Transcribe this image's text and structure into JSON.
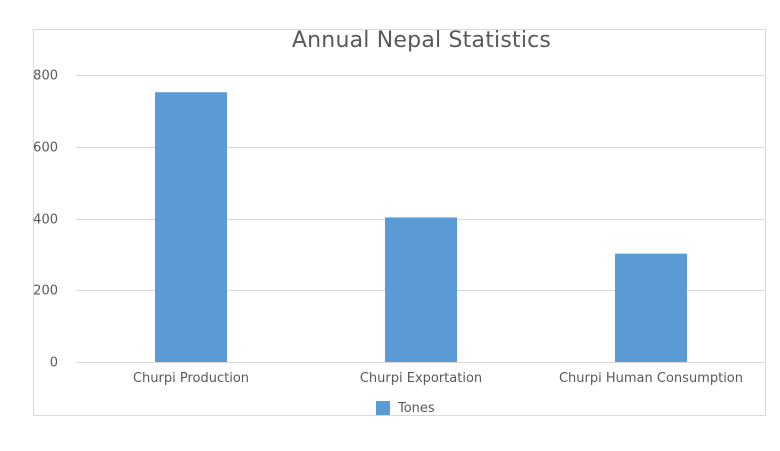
{
  "chart_data": {
    "type": "bar",
    "title": "Annual Nepal Statistics",
    "categories": [
      "Churpi Production",
      "Churpi Exportation",
      "Churpi Human Consumption"
    ],
    "series": [
      {
        "name": "Tones",
        "values": [
          752,
          403,
          302
        ]
      }
    ],
    "ylim": [
      0,
      800
    ],
    "yticks": [
      "0",
      "200",
      "400",
      "600",
      "800"
    ],
    "grid": true,
    "legend_position": "bottom",
    "colors": {
      "bar": "#5b9bd5",
      "grid": "#d9d9d9",
      "text": "#595959"
    }
  }
}
